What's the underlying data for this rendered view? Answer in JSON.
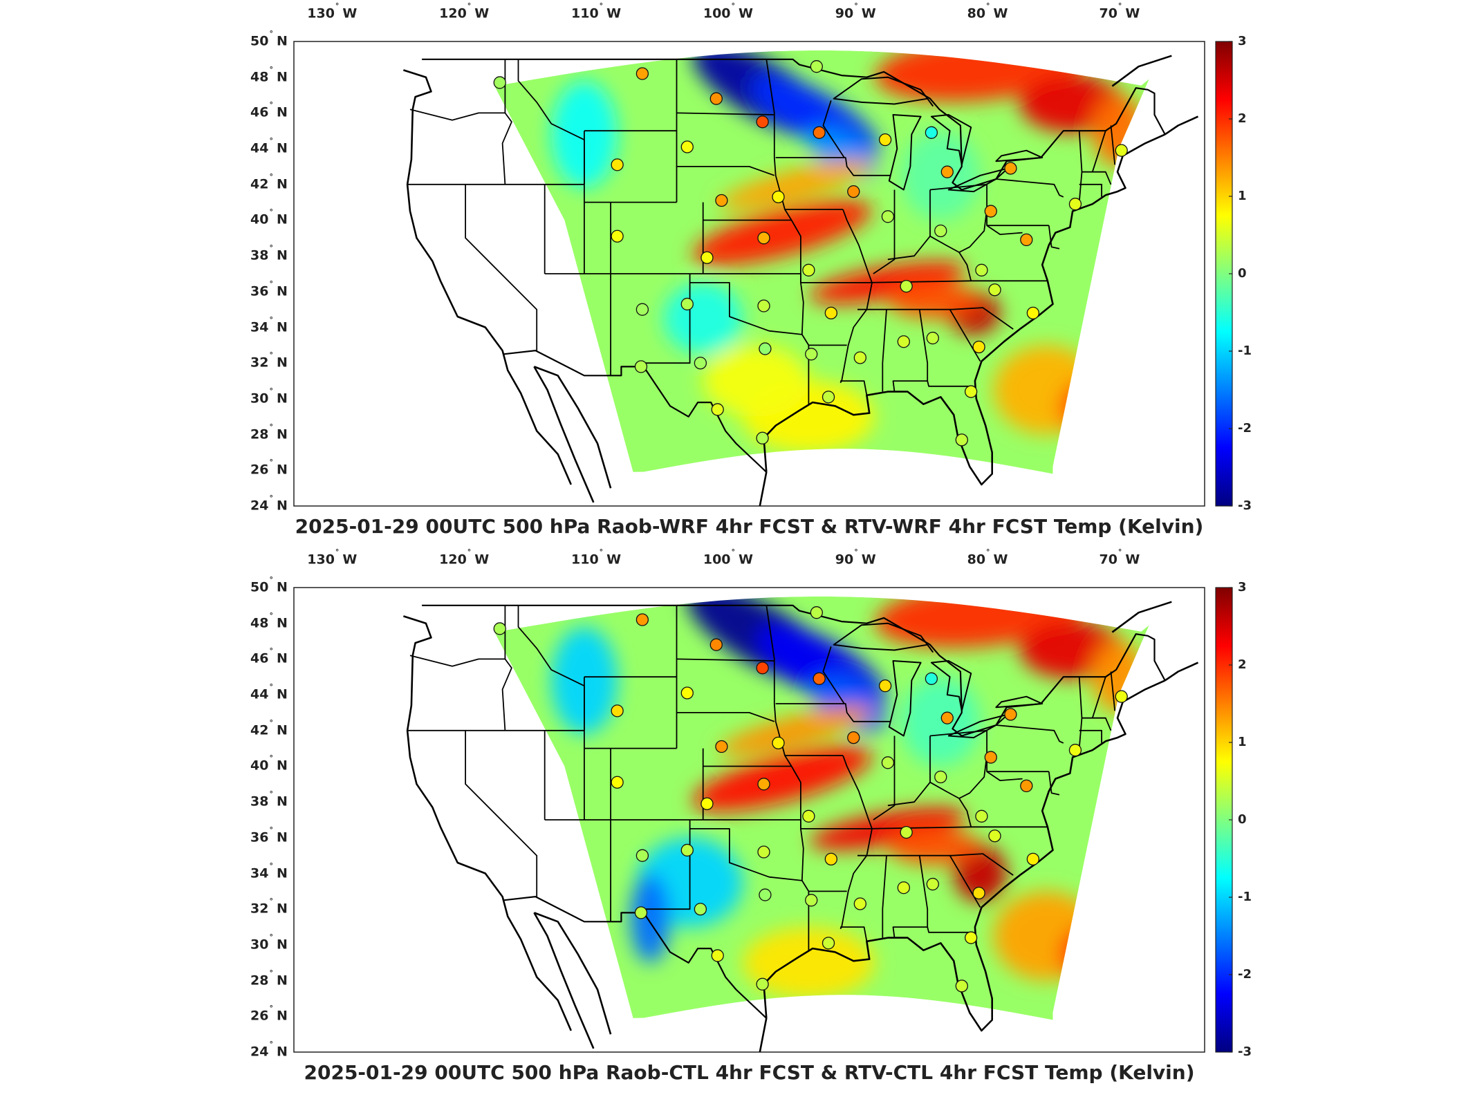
{
  "panels": [
    {
      "id": "raob-wrf",
      "title": "2025-01-29 00UTC 500 hPa Raob-WRF 4hr FCST & RTV-WRF 4hr FCST Temp (Kelvin)",
      "variant": 0
    },
    {
      "id": "raob-ctl",
      "title": "2025-01-29 00UTC 500 hPa Raob-CTL 4hr FCST & RTV-CTL 4hr FCST Temp (Kelvin)",
      "variant": 1
    }
  ],
  "longitude_labels": [
    {
      "deg": "130",
      "hemi": "W"
    },
    {
      "deg": "120",
      "hemi": "W"
    },
    {
      "deg": "110",
      "hemi": "W"
    },
    {
      "deg": "100",
      "hemi": "W"
    },
    {
      "deg": "90",
      "hemi": "W"
    },
    {
      "deg": "80",
      "hemi": "W"
    },
    {
      "deg": "70",
      "hemi": "W"
    }
  ],
  "latitude_labels": [
    {
      "deg": "50",
      "hemi": "N"
    },
    {
      "deg": "48",
      "hemi": "N"
    },
    {
      "deg": "46",
      "hemi": "N"
    },
    {
      "deg": "44",
      "hemi": "N"
    },
    {
      "deg": "42",
      "hemi": "N"
    },
    {
      "deg": "40",
      "hemi": "N"
    },
    {
      "deg": "38",
      "hemi": "N"
    },
    {
      "deg": "36",
      "hemi": "N"
    },
    {
      "deg": "34",
      "hemi": "N"
    },
    {
      "deg": "32",
      "hemi": "N"
    },
    {
      "deg": "30",
      "hemi": "N"
    },
    {
      "deg": "28",
      "hemi": "N"
    },
    {
      "deg": "26",
      "hemi": "N"
    },
    {
      "deg": "24",
      "hemi": "N"
    }
  ],
  "colorbar": {
    "ticks": [
      "3",
      "2",
      "1",
      "0",
      "-1",
      "-2",
      "-3"
    ],
    "colors": [
      "#800000",
      "#ff0000",
      "#ff8000",
      "#ffff00",
      "#80ff80",
      "#00ffff",
      "#0080ff",
      "#0000ff",
      "#000080"
    ]
  },
  "stations": [
    {
      "lon": -117.4,
      "lat": 47.7,
      "v": 0.2
    },
    {
      "lon": -106.6,
      "lat": 48.2,
      "v": 1.3
    },
    {
      "lon": -101.0,
      "lat": 46.8,
      "v": 1.4
    },
    {
      "lon": -97.5,
      "lat": 45.5,
      "v": 1.8
    },
    {
      "lon": -93.2,
      "lat": 44.9,
      "v": 1.6
    },
    {
      "lon": -93.4,
      "lat": 48.6,
      "v": 0.3
    },
    {
      "lon": -88.2,
      "lat": 44.5,
      "v": 0.9
    },
    {
      "lon": -84.7,
      "lat": 44.9,
      "v": -0.6
    },
    {
      "lon": -83.5,
      "lat": 42.7,
      "v": 1.3
    },
    {
      "lon": -78.7,
      "lat": 42.9,
      "v": 1.3
    },
    {
      "lon": -73.8,
      "lat": 40.9,
      "v": 0.6
    },
    {
      "lon": -70.3,
      "lat": 43.9,
      "v": 0.6
    },
    {
      "lon": -108.5,
      "lat": 43.1,
      "v": 0.9
    },
    {
      "lon": -103.2,
      "lat": 44.1,
      "v": 0.7
    },
    {
      "lon": -100.6,
      "lat": 41.1,
      "v": 1.3
    },
    {
      "lon": -96.3,
      "lat": 41.3,
      "v": 0.8
    },
    {
      "lon": -90.6,
      "lat": 41.6,
      "v": 1.4
    },
    {
      "lon": -88.0,
      "lat": 40.2,
      "v": 0.3
    },
    {
      "lon": -80.2,
      "lat": 40.5,
      "v": 1.3
    },
    {
      "lon": -84.0,
      "lat": 39.4,
      "v": 0.3
    },
    {
      "lon": -108.5,
      "lat": 39.1,
      "v": 0.7
    },
    {
      "lon": -101.7,
      "lat": 37.9,
      "v": 0.7
    },
    {
      "lon": -97.4,
      "lat": 39.0,
      "v": 1.2
    },
    {
      "lon": -94.0,
      "lat": 37.2,
      "v": 0.5
    },
    {
      "lon": -77.5,
      "lat": 38.9,
      "v": 1.3
    },
    {
      "lon": -86.6,
      "lat": 36.3,
      "v": 0.4
    },
    {
      "lon": -80.9,
      "lat": 37.2,
      "v": 0.4
    },
    {
      "lon": -79.9,
      "lat": 36.1,
      "v": 0.5
    },
    {
      "lon": -106.6,
      "lat": 35.0,
      "v": 0.2
    },
    {
      "lon": -103.2,
      "lat": 35.3,
      "v": 0.3
    },
    {
      "lon": -97.4,
      "lat": 35.2,
      "v": 0.4
    },
    {
      "lon": -92.3,
      "lat": 34.8,
      "v": 0.9
    },
    {
      "lon": -106.7,
      "lat": 31.8,
      "v": 0.3
    },
    {
      "lon": -102.2,
      "lat": 32.0,
      "v": 0.2
    },
    {
      "lon": -97.3,
      "lat": 32.8,
      "v": 0.1
    },
    {
      "lon": -93.8,
      "lat": 32.5,
      "v": 0.3
    },
    {
      "lon": -90.1,
      "lat": 32.3,
      "v": 0.5
    },
    {
      "lon": -86.8,
      "lat": 33.2,
      "v": 0.5
    },
    {
      "lon": -84.6,
      "lat": 33.4,
      "v": 0.4
    },
    {
      "lon": -81.1,
      "lat": 32.9,
      "v": 0.9
    },
    {
      "lon": -77.0,
      "lat": 34.8,
      "v": 0.8
    },
    {
      "lon": -92.5,
      "lat": 30.1,
      "v": 0.4
    },
    {
      "lon": -81.7,
      "lat": 30.4,
      "v": 0.6
    },
    {
      "lon": -100.9,
      "lat": 29.4,
      "v": 0.6
    },
    {
      "lon": -97.5,
      "lat": 27.8,
      "v": 0.3
    },
    {
      "lon": -82.4,
      "lat": 27.7,
      "v": 0.4
    }
  ]
}
